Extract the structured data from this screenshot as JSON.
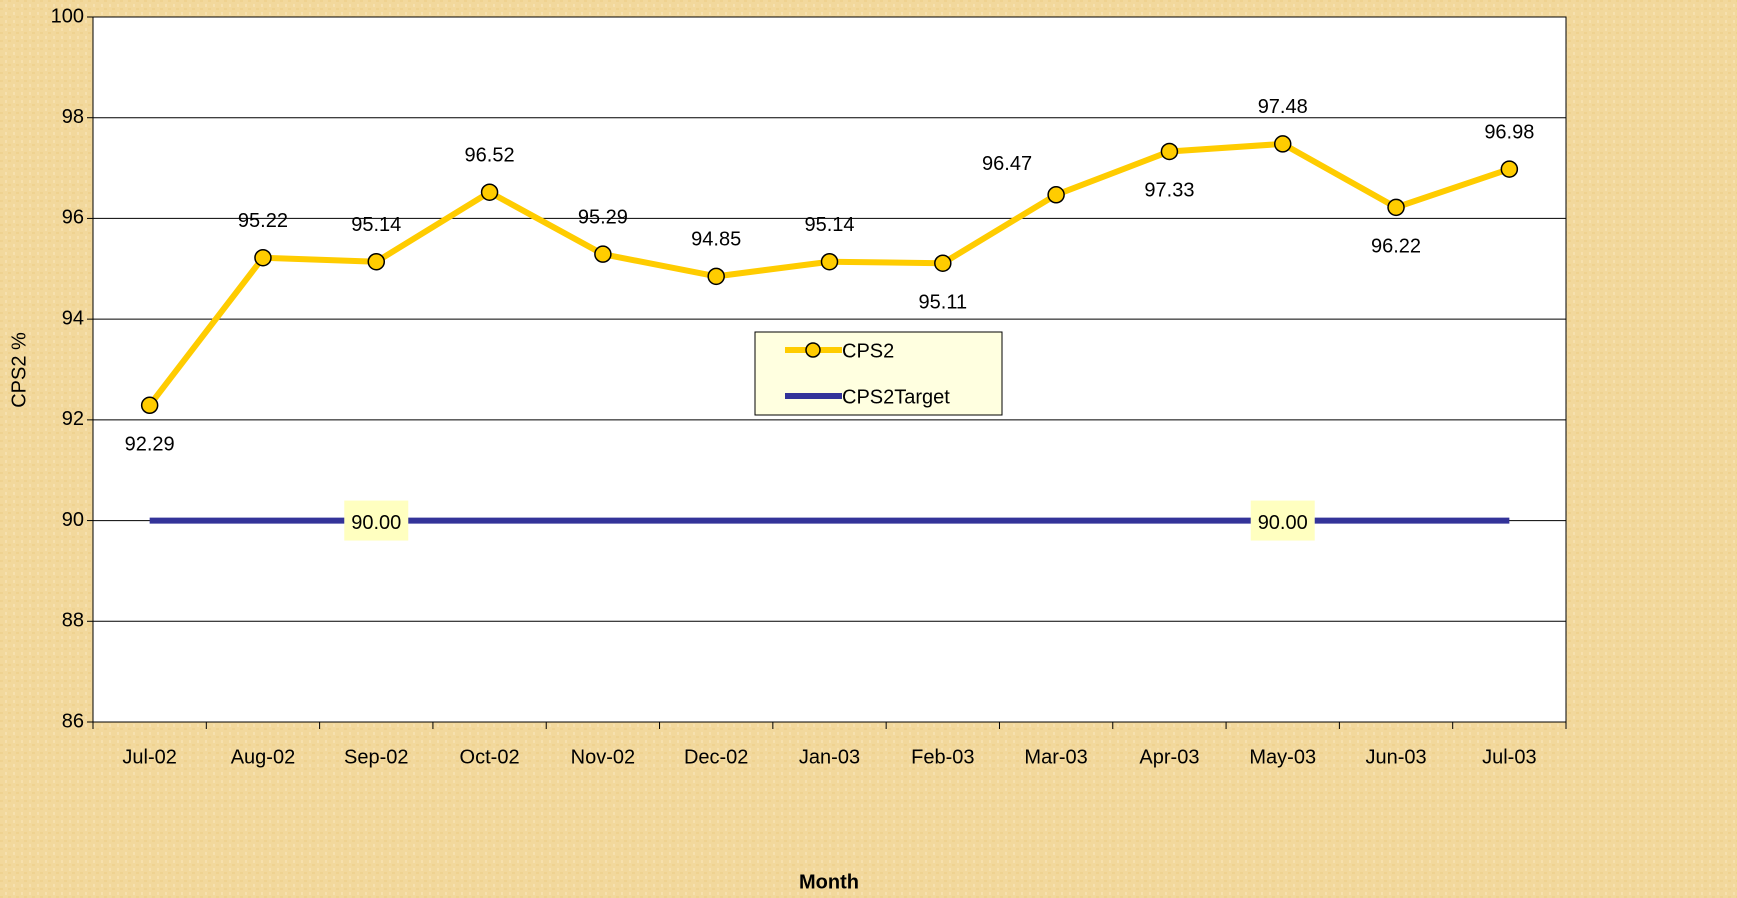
{
  "chart_data": {
    "type": "line",
    "x_label": "Month",
    "y_label": "CPS2  %",
    "categories": [
      "Jul-02",
      "Aug-02",
      "Sep-02",
      "Oct-02",
      "Nov-02",
      "Dec-02",
      "Jan-03",
      "Feb-03",
      "Mar-03",
      "Apr-03",
      "May-03",
      "Jun-03",
      "Jul-03"
    ],
    "series": [
      {
        "name": "CPS2",
        "color": "#ffcc00",
        "marker": "circle",
        "values": [
          92.29,
          95.22,
          95.14,
          96.52,
          95.29,
          94.85,
          95.14,
          95.11,
          96.47,
          97.33,
          97.48,
          96.22,
          96.98
        ]
      },
      {
        "name": "CPS2Target",
        "color": "#333399",
        "values": [
          90,
          90,
          90,
          90,
          90,
          90,
          90,
          90,
          90,
          90,
          90,
          90,
          90
        ],
        "value_labels": [
          null,
          null,
          "90.00",
          null,
          null,
          null,
          null,
          null,
          null,
          null,
          "90.00",
          null,
          null
        ]
      }
    ],
    "ylim": [
      86,
      100
    ],
    "yticks": [
      86,
      88,
      90,
      92,
      94,
      96,
      98,
      100
    ],
    "grid": true,
    "legend": true
  }
}
